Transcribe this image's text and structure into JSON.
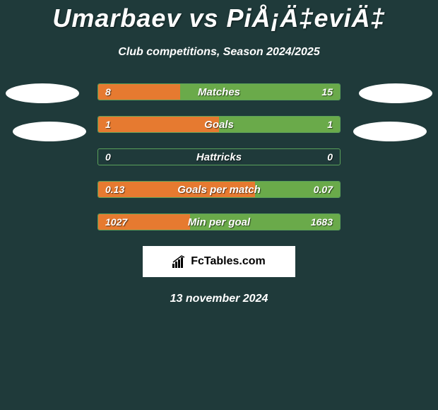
{
  "header": {
    "title": "Umarbaev vs PiÅ¡Ä‡eviÄ‡",
    "subtitle": "Club competitions, Season 2024/2025"
  },
  "colors": {
    "background": "#1f3a3a",
    "bar_border": "#5aa05a",
    "fill_left": "#e67a30",
    "fill_right": "#6aaa4a",
    "ellipse": "#ffffff",
    "brand_bg": "#ffffff"
  },
  "stats": [
    {
      "label": "Matches",
      "left_value": "8",
      "right_value": "15",
      "left_pct": 34,
      "right_pct": 66
    },
    {
      "label": "Goals",
      "left_value": "1",
      "right_value": "1",
      "left_pct": 50,
      "right_pct": 50
    },
    {
      "label": "Hattricks",
      "left_value": "0",
      "right_value": "0",
      "left_pct": 0,
      "right_pct": 0
    },
    {
      "label": "Goals per match",
      "left_value": "0.13",
      "right_value": "0.07",
      "left_pct": 65,
      "right_pct": 35
    },
    {
      "label": "Min per goal",
      "left_value": "1027",
      "right_value": "1683",
      "left_pct": 38,
      "right_pct": 62
    }
  ],
  "brand": {
    "text": "FcTables.com"
  },
  "footer": {
    "date": "13 november 2024"
  }
}
